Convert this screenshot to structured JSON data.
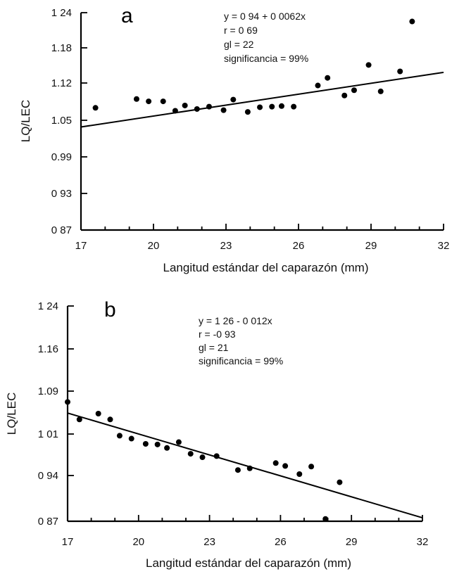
{
  "chart_data": [
    {
      "type": "scatter",
      "panel": "a",
      "xlabel": "Langitud estándar del caparazón (mm)",
      "ylabel": "LQ/LEC",
      "xlim": [
        17,
        32
      ],
      "ylim": [
        0.87,
        1.24
      ],
      "x_ticks": [
        "17",
        "20",
        "23",
        "26",
        "29",
        "32"
      ],
      "y_ticks": [
        "0 87",
        "0 93",
        "0.99",
        "1.05",
        "1.12",
        "1.18",
        "1 24"
      ],
      "annotations": [
        "y = 0 94 + 0 0062x",
        "r = 0 69",
        "gl = 22",
        "significancia = 99%"
      ],
      "regression": {
        "intercept": 0.94,
        "slope": 0.0062
      },
      "points": [
        {
          "x": 17.6,
          "y": 1.078
        },
        {
          "x": 19.3,
          "y": 1.093
        },
        {
          "x": 19.8,
          "y": 1.089
        },
        {
          "x": 20.4,
          "y": 1.089
        },
        {
          "x": 20.9,
          "y": 1.073
        },
        {
          "x": 21.3,
          "y": 1.082
        },
        {
          "x": 21.8,
          "y": 1.076
        },
        {
          "x": 22.3,
          "y": 1.08
        },
        {
          "x": 22.9,
          "y": 1.074
        },
        {
          "x": 23.3,
          "y": 1.092
        },
        {
          "x": 23.9,
          "y": 1.071
        },
        {
          "x": 24.4,
          "y": 1.079
        },
        {
          "x": 24.9,
          "y": 1.08
        },
        {
          "x": 25.3,
          "y": 1.081
        },
        {
          "x": 25.8,
          "y": 1.08
        },
        {
          "x": 26.8,
          "y": 1.116
        },
        {
          "x": 27.2,
          "y": 1.129
        },
        {
          "x": 27.9,
          "y": 1.099
        },
        {
          "x": 28.3,
          "y": 1.108
        },
        {
          "x": 28.9,
          "y": 1.151
        },
        {
          "x": 29.4,
          "y": 1.106
        },
        {
          "x": 30.2,
          "y": 1.14
        },
        {
          "x": 30.7,
          "y": 1.225
        }
      ]
    },
    {
      "type": "scatter",
      "panel": "b",
      "xlabel": "Langitud estándar del caparazón (mm)",
      "ylabel": "LQ/LEC",
      "xlim": [
        17,
        32
      ],
      "ylim": [
        0.87,
        1.24
      ],
      "x_ticks": [
        "17",
        "20",
        "23",
        "26",
        "29",
        "32"
      ],
      "y_ticks": [
        "0 87",
        "0 94",
        "1 01",
        "1.09",
        "1.16",
        "1 24"
      ],
      "annotations": [
        "y = 1 26 - 0 012x",
        "r = -0 93",
        "gl = 21",
        "significancia = 99%"
      ],
      "regression": {
        "intercept": 1.26,
        "slope": -0.012
      },
      "points": [
        {
          "x": 17.0,
          "y": 1.075
        },
        {
          "x": 17.5,
          "y": 1.045
        },
        {
          "x": 18.3,
          "y": 1.055
        },
        {
          "x": 18.8,
          "y": 1.045
        },
        {
          "x": 19.2,
          "y": 1.017
        },
        {
          "x": 19.7,
          "y": 1.012
        },
        {
          "x": 20.3,
          "y": 1.003
        },
        {
          "x": 20.8,
          "y": 1.002
        },
        {
          "x": 21.2,
          "y": 0.996
        },
        {
          "x": 21.7,
          "y": 1.006
        },
        {
          "x": 22.2,
          "y": 0.986
        },
        {
          "x": 22.7,
          "y": 0.98
        },
        {
          "x": 23.3,
          "y": 0.982
        },
        {
          "x": 24.2,
          "y": 0.958
        },
        {
          "x": 24.7,
          "y": 0.961
        },
        {
          "x": 25.8,
          "y": 0.97
        },
        {
          "x": 26.2,
          "y": 0.965
        },
        {
          "x": 26.8,
          "y": 0.951
        },
        {
          "x": 27.3,
          "y": 0.964
        },
        {
          "x": 27.9,
          "y": 0.874
        },
        {
          "x": 28.5,
          "y": 0.937
        }
      ]
    }
  ]
}
